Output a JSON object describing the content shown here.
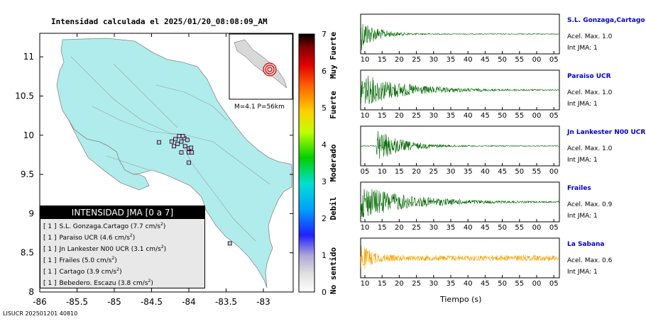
{
  "title": "Intensidad calculada el 2025/01/20_08:08:09_AM",
  "footer": "LISUCR 202501201 40810",
  "inset_label": "M=4.1 P=56km",
  "legend": {
    "heading": "INTENSIDAD JMA [0 a 7]",
    "rows": [
      {
        "level": "[ 1 ]",
        "station": "S.L. Gonzaga.Cartago (7.7 cm/s",
        "sup": "2",
        "close": ")"
      },
      {
        "level": "[ 1 ]",
        "station": "Paraiso UCR (4.6 cm/s",
        "sup": "2",
        "close": ")"
      },
      {
        "level": "[ 1 ]",
        "station": "Jn Lankester N00 UCR (3.1 cm/s",
        "sup": "2",
        "close": ")"
      },
      {
        "level": "[ 1 ]",
        "station": "Frailes (5.0 cm/s",
        "sup": "2",
        "close": ")"
      },
      {
        "level": "[ 1 ]",
        "station": "Cartago (3.9 cm/s",
        "sup": "2",
        "close": ")"
      },
      {
        "level": "[ 1 ]",
        "station": "Bebedero. Escazu (3.8 cm/s",
        "sup": "2",
        "close": ")"
      }
    ]
  },
  "colorbar": {
    "ticks": [
      "0",
      "1",
      "2",
      "3",
      "4",
      "5",
      "6",
      "7"
    ],
    "words": [
      "No sentido",
      "Debil",
      "Moderado",
      "Fuerte",
      "Muy Fuerte"
    ]
  },
  "traces_xlabel": "Tiempo (s)",
  "traces": [
    {
      "name": "S.L. Gonzaga,Cartago",
      "acel": "Acel. Max. 1.0",
      "int": "Int JMA: 1",
      "ticks": [
        "10",
        "15",
        "20",
        "25",
        "30",
        "35",
        "40",
        "45",
        "50",
        "55",
        "00",
        "05"
      ],
      "color": "#006400"
    },
    {
      "name": "Paraiso UCR",
      "acel": "Acel. Max. 1.0",
      "int": "Int JMA: 1",
      "ticks": [
        "10",
        "15",
        "20",
        "25",
        "30",
        "35",
        "40",
        "45",
        "50",
        "55",
        "00",
        "05"
      ],
      "color": "#006400"
    },
    {
      "name": "Jn Lankester N00 UCR",
      "acel": "Acel. Max. 1.0",
      "int": "Int JMA: 1",
      "ticks": [
        "05",
        "10",
        "15",
        "20",
        "25",
        "30",
        "35",
        "40",
        "45",
        "50",
        "55",
        "00"
      ],
      "color": "#006400"
    },
    {
      "name": "Frailes",
      "acel": "Acel. Max. 0.9",
      "int": "Int JMA: 1",
      "ticks": [
        "10",
        "15",
        "20",
        "25",
        "30",
        "35",
        "40",
        "45",
        "50",
        "55",
        "00",
        "05"
      ],
      "color": "#006400"
    },
    {
      "name": "La Sabana",
      "acel": "Acel. Max. 0.6",
      "int": "Int JMA: 1",
      "ticks": [
        "10",
        "15",
        "20",
        "25",
        "30",
        "35",
        "40",
        "45",
        "50",
        "55",
        "00",
        "05"
      ],
      "color": "#f4a300"
    }
  ],
  "chart_data": {
    "type": "scatter",
    "title": "Intensidad calculada el 2025/01/20_08:08:09_AM",
    "xlabel": "",
    "ylabel": "",
    "xlim": [
      -86,
      -82.6
    ],
    "ylim": [
      8,
      11.3
    ],
    "xticks": [
      "-86",
      "-85.5",
      "-85",
      "-84.5",
      "-84",
      "-83.5",
      "-83"
    ],
    "yticks": [
      "8",
      "8.5",
      "9",
      "9.5",
      "10",
      "10.5",
      "11"
    ],
    "stations": [
      {
        "x": -84.05,
        "y": 9.86
      },
      {
        "x": -84.0,
        "y": 9.83
      },
      {
        "x": -83.97,
        "y": 9.84
      },
      {
        "x": -84.1,
        "y": 9.92
      },
      {
        "x": -84.15,
        "y": 9.89
      },
      {
        "x": -84.18,
        "y": 9.95
      },
      {
        "x": -84.06,
        "y": 9.96
      },
      {
        "x": -84.02,
        "y": 9.94
      },
      {
        "x": -84.13,
        "y": 9.99
      },
      {
        "x": -84.08,
        "y": 9.99
      },
      {
        "x": -84.2,
        "y": 9.86
      },
      {
        "x": -84.1,
        "y": 9.78
      },
      {
        "x": -84.0,
        "y": 9.78
      },
      {
        "x": -83.96,
        "y": 9.78
      },
      {
        "x": -84.23,
        "y": 9.92
      },
      {
        "x": -84.4,
        "y": 9.91
      },
      {
        "x": -84.0,
        "y": 9.65
      },
      {
        "x": -83.45,
        "y": 8.62
      }
    ]
  }
}
